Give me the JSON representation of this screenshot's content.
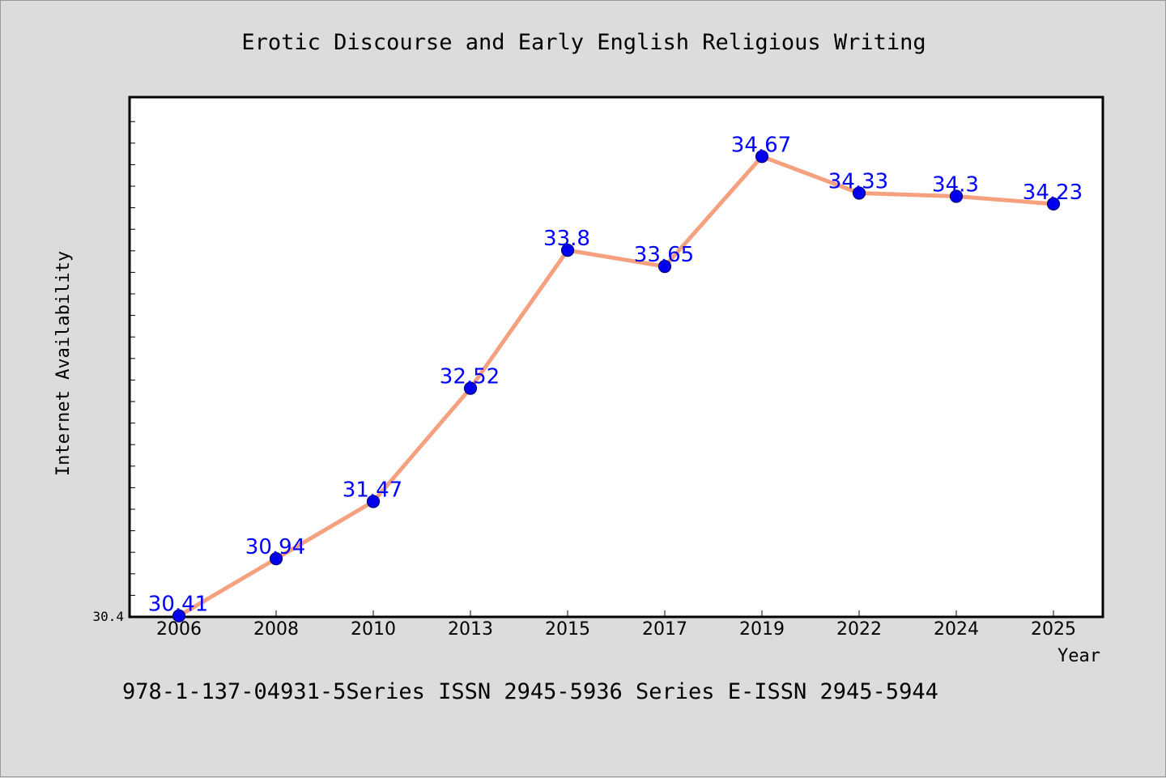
{
  "chart_data": {
    "type": "line",
    "title": "Erotic Discourse and Early English Religious Writing",
    "xlabel": "Year",
    "ylabel": "Internet Availability",
    "categories": [
      "2006",
      "2008",
      "2010",
      "2013",
      "2015",
      "2017",
      "2019",
      "2022",
      "2024",
      "2025"
    ],
    "values": [
      30.41,
      30.94,
      31.47,
      32.52,
      33.8,
      33.65,
      34.67,
      34.33,
      34.3,
      34.23
    ],
    "data_labels": [
      "30.41",
      "30.94",
      "31.47",
      "32.52",
      "33.8",
      "33.65",
      "34.67",
      "34.33",
      "34.3",
      "34.23"
    ],
    "y_tick_label": "30.4",
    "ylim": [
      30.4,
      35.22
    ],
    "grid": false,
    "legend": "none",
    "colors": {
      "line": "#f5a07f",
      "marker": "#0000ee",
      "marker_edge": "#00007a",
      "data_label": "#0000ff",
      "plot_background": "#ffffff",
      "page_background": "#dcdcdc"
    }
  },
  "footer": {
    "text": "978-1-137-04931-5Series ISSN 2945-5936 Series E-ISSN 2945-5944"
  }
}
